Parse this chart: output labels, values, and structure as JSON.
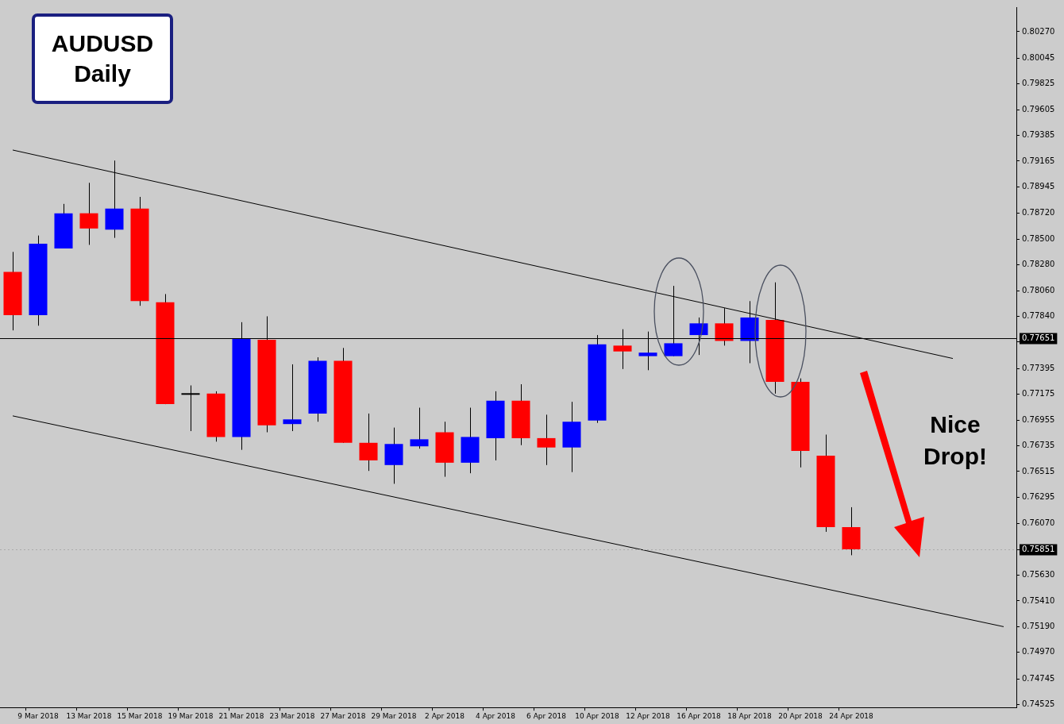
{
  "chart_data": {
    "type": "candlestick",
    "title": "AUDUSD",
    "subtitle": "Daily",
    "categories": [
      null,
      "9 Mar 2018",
      null,
      "13 Mar 2018",
      null,
      "15 Mar 2018",
      null,
      "19 Mar 2018",
      null,
      "21 Mar 2018",
      null,
      "23 Mar 2018",
      null,
      "27 Mar 2018",
      null,
      "29 Mar 2018",
      null,
      "2 Apr 2018",
      null,
      "4 Apr 2018",
      null,
      "6 Apr 2018",
      null,
      "10 Apr 2018",
      null,
      "12 Apr 2018",
      null,
      "16 Apr 2018",
      null,
      "18 Apr 2018",
      null,
      "20 Apr 2018",
      null,
      "24 Apr 2018",
      null,
      null,
      null,
      null,
      null,
      null
    ],
    "ohlc": [
      [
        0.7822,
        0.7839,
        0.7772,
        0.7785
      ],
      [
        0.7785,
        0.7853,
        0.7776,
        0.7846
      ],
      [
        0.7842,
        0.788,
        0.7842,
        0.7872
      ],
      [
        0.7872,
        0.7898,
        0.7845,
        0.7859
      ],
      [
        0.7858,
        0.7917,
        0.7851,
        0.7876
      ],
      [
        0.7876,
        0.7886,
        0.7793,
        0.7797
      ],
      [
        0.7796,
        0.7803,
        0.7709,
        0.7709
      ],
      [
        0.7717,
        0.7725,
        0.7686,
        0.7717
      ],
      [
        0.7718,
        0.772,
        0.7677,
        0.7681
      ],
      [
        0.7681,
        0.7779,
        0.767,
        0.7765
      ],
      [
        0.7764,
        0.7784,
        0.7685,
        0.7691
      ],
      [
        0.7692,
        0.7743,
        0.7686,
        0.7696
      ],
      [
        0.7701,
        0.7749,
        0.7694,
        0.7746
      ],
      [
        0.7746,
        0.7757,
        0.7676,
        0.7676
      ],
      [
        0.7676,
        0.7701,
        0.7652,
        0.7661
      ],
      [
        0.7657,
        0.7689,
        0.7641,
        0.7675
      ],
      [
        0.7673,
        0.7706,
        0.7671,
        0.7679
      ],
      [
        0.7685,
        0.7694,
        0.7647,
        0.7659
      ],
      [
        0.7659,
        0.7706,
        0.765,
        0.7681
      ],
      [
        0.768,
        0.772,
        0.7661,
        0.7712
      ],
      [
        0.7712,
        0.7726,
        0.7674,
        0.768
      ],
      [
        0.768,
        0.77,
        0.7657,
        0.7672
      ],
      [
        0.7672,
        0.7711,
        0.7651,
        0.7694
      ],
      [
        0.7695,
        0.7768,
        0.7693,
        0.776
      ],
      [
        0.7759,
        0.7773,
        0.7739,
        0.7754
      ],
      [
        0.775,
        0.7771,
        0.7738,
        0.7753
      ],
      [
        0.775,
        0.781,
        0.775,
        0.7761
      ],
      [
        0.7768,
        0.7783,
        0.7751,
        0.7778
      ],
      [
        0.7778,
        0.7791,
        0.7759,
        0.7763
      ],
      [
        0.7763,
        0.7797,
        0.7744,
        0.7783
      ],
      [
        0.7781,
        0.7813,
        0.7718,
        0.7728
      ],
      [
        0.7728,
        0.7731,
        0.7655,
        0.7669
      ],
      [
        0.7665,
        0.7683,
        0.76,
        0.7604
      ],
      [
        0.7604,
        0.7621,
        0.758,
        0.75851
      ],
      null,
      null,
      null,
      null,
      null,
      null
    ],
    "colors": [
      "#ff0000",
      "#0000ff",
      "#0000ff",
      "#ff0000",
      "#0000ff",
      "#ff0000",
      "#ff0000",
      "#000000",
      "#ff0000",
      "#0000ff",
      "#ff0000",
      "#0000ff",
      "#0000ff",
      "#ff0000",
      "#ff0000",
      "#0000ff",
      "#0000ff",
      "#ff0000",
      "#0000ff",
      "#0000ff",
      "#ff0000",
      "#ff0000",
      "#0000ff",
      "#0000ff",
      "#ff0000",
      "#0000ff",
      "#0000ff",
      "#0000ff",
      "#ff0000",
      "#0000ff",
      "#ff0000",
      "#ff0000",
      "#ff0000",
      "#ff0000",
      null,
      null,
      null,
      null,
      null,
      null
    ],
    "series": [
      {
        "type": "line",
        "color": "#000000",
        "values": [
          0.7926,
          null,
          null,
          null,
          null,
          null,
          null,
          null,
          null,
          null,
          null,
          null,
          null,
          null,
          null,
          null,
          null,
          null,
          null,
          null,
          null,
          null,
          null,
          null,
          null,
          null,
          null,
          null,
          null,
          null,
          null,
          null,
          null,
          null,
          null,
          null,
          null,
          0.7748,
          null,
          null
        ]
      },
      {
        "type": "line",
        "color": "#000000",
        "values": [
          0.7699,
          null,
          null,
          null,
          null,
          null,
          null,
          null,
          null,
          null,
          null,
          null,
          null,
          null,
          null,
          null,
          null,
          null,
          null,
          null,
          null,
          null,
          null,
          null,
          null,
          null,
          null,
          null,
          null,
          null,
          null,
          null,
          null,
          null,
          null,
          null,
          null,
          null,
          null,
          0.7519
        ]
      }
    ],
    "ylim": [
      0.745,
      0.8048
    ],
    "yticks": [
      {
        "value": 0.8027,
        "label": "0.80270"
      },
      0.80045,
      0.79825,
      0.79605,
      0.79385,
      0.79165,
      0.78945,
      {
        "value": 0.7872,
        "label": "0.78720"
      },
      {
        "value": 0.785,
        "label": "0.78500"
      },
      {
        "value": 0.7828,
        "label": "0.78280"
      },
      {
        "value": 0.7806,
        "label": "0.78060"
      },
      {
        "value": 0.7784,
        "label": "0.77840"
      },
      {
        "value": 0.7762,
        "label": null
      },
      0.77395,
      0.77175,
      0.76955,
      0.76735,
      0.76515,
      0.76295,
      {
        "value": 0.7607,
        "label": "0.76070"
      },
      {
        "value": 0.7585,
        "label": null
      },
      {
        "value": 0.7563,
        "label": "0.75630"
      },
      {
        "value": 0.7541,
        "label": "0.75410"
      },
      {
        "value": 0.7519,
        "label": "0.75190"
      },
      {
        "value": 0.7497,
        "label": "0.74970"
      },
      0.74745,
      0.74525
    ],
    "ref_lines": [
      {
        "axis": "y",
        "value": 0.77651,
        "label": "0.77651",
        "color": "#000000",
        "line_style": "solid"
      },
      {
        "axis": "y",
        "value": 0.75851,
        "label": "0.75851",
        "color": "#aaaaaa",
        "line_style": "dotted"
      }
    ],
    "annotations": [
      "Nice Drop!"
    ],
    "marker": "none",
    "legend": false,
    "grid": false
  }
}
